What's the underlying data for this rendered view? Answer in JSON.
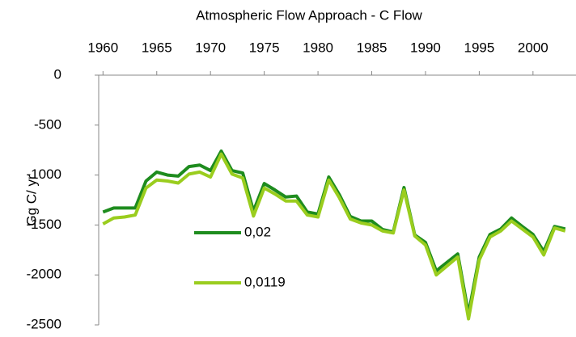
{
  "chart_data": {
    "type": "line",
    "title": "Atmospheric Flow Approach - C Flow",
    "y_label": "Gg C/ yr",
    "x": [
      1960,
      1961,
      1962,
      1963,
      1964,
      1965,
      1966,
      1967,
      1968,
      1969,
      1970,
      1971,
      1972,
      1973,
      1974,
      1975,
      1976,
      1977,
      1978,
      1979,
      1980,
      1981,
      1982,
      1983,
      1984,
      1985,
      1986,
      1987,
      1988,
      1989,
      1990,
      1991,
      1992,
      1993,
      1994,
      1995,
      1996,
      1997,
      1998,
      1999,
      2000,
      2001,
      2002,
      2003
    ],
    "series": [
      {
        "name": "0,02",
        "color": "#1e8c1e",
        "values": [
          -1370,
          -1330,
          -1330,
          -1330,
          -1060,
          -970,
          -1000,
          -1010,
          -915,
          -900,
          -955,
          -760,
          -955,
          -980,
          -1360,
          -1085,
          -1150,
          -1220,
          -1210,
          -1370,
          -1390,
          -1020,
          -1200,
          -1415,
          -1460,
          -1460,
          -1545,
          -1570,
          -1125,
          -1600,
          -1675,
          -1960,
          -1875,
          -1790,
          -2390,
          -1820,
          -1595,
          -1540,
          -1430,
          -1515,
          -1595,
          -1765,
          -1515,
          -1540
        ]
      },
      {
        "name": "0,0119",
        "color": "#9acd1e",
        "values": [
          -1490,
          -1430,
          -1420,
          -1400,
          -1130,
          -1050,
          -1060,
          -1080,
          -990,
          -970,
          -1020,
          -790,
          -990,
          -1030,
          -1410,
          -1130,
          -1190,
          -1260,
          -1260,
          -1400,
          -1420,
          -1050,
          -1230,
          -1440,
          -1480,
          -1500,
          -1560,
          -1580,
          -1150,
          -1610,
          -1700,
          -2000,
          -1910,
          -1820,
          -2440,
          -1850,
          -1620,
          -1560,
          -1460,
          -1540,
          -1620,
          -1800,
          -1530,
          -1560
        ]
      }
    ],
    "xlim": [
      1959.6,
      2004
    ],
    "xticks": [
      1960,
      1965,
      1970,
      1975,
      1980,
      1985,
      1990,
      1995,
      2000
    ],
    "ylim": [
      -2500,
      0
    ],
    "yticks": [
      0,
      -500,
      -1000,
      -1500,
      -2000,
      -2500
    ]
  }
}
